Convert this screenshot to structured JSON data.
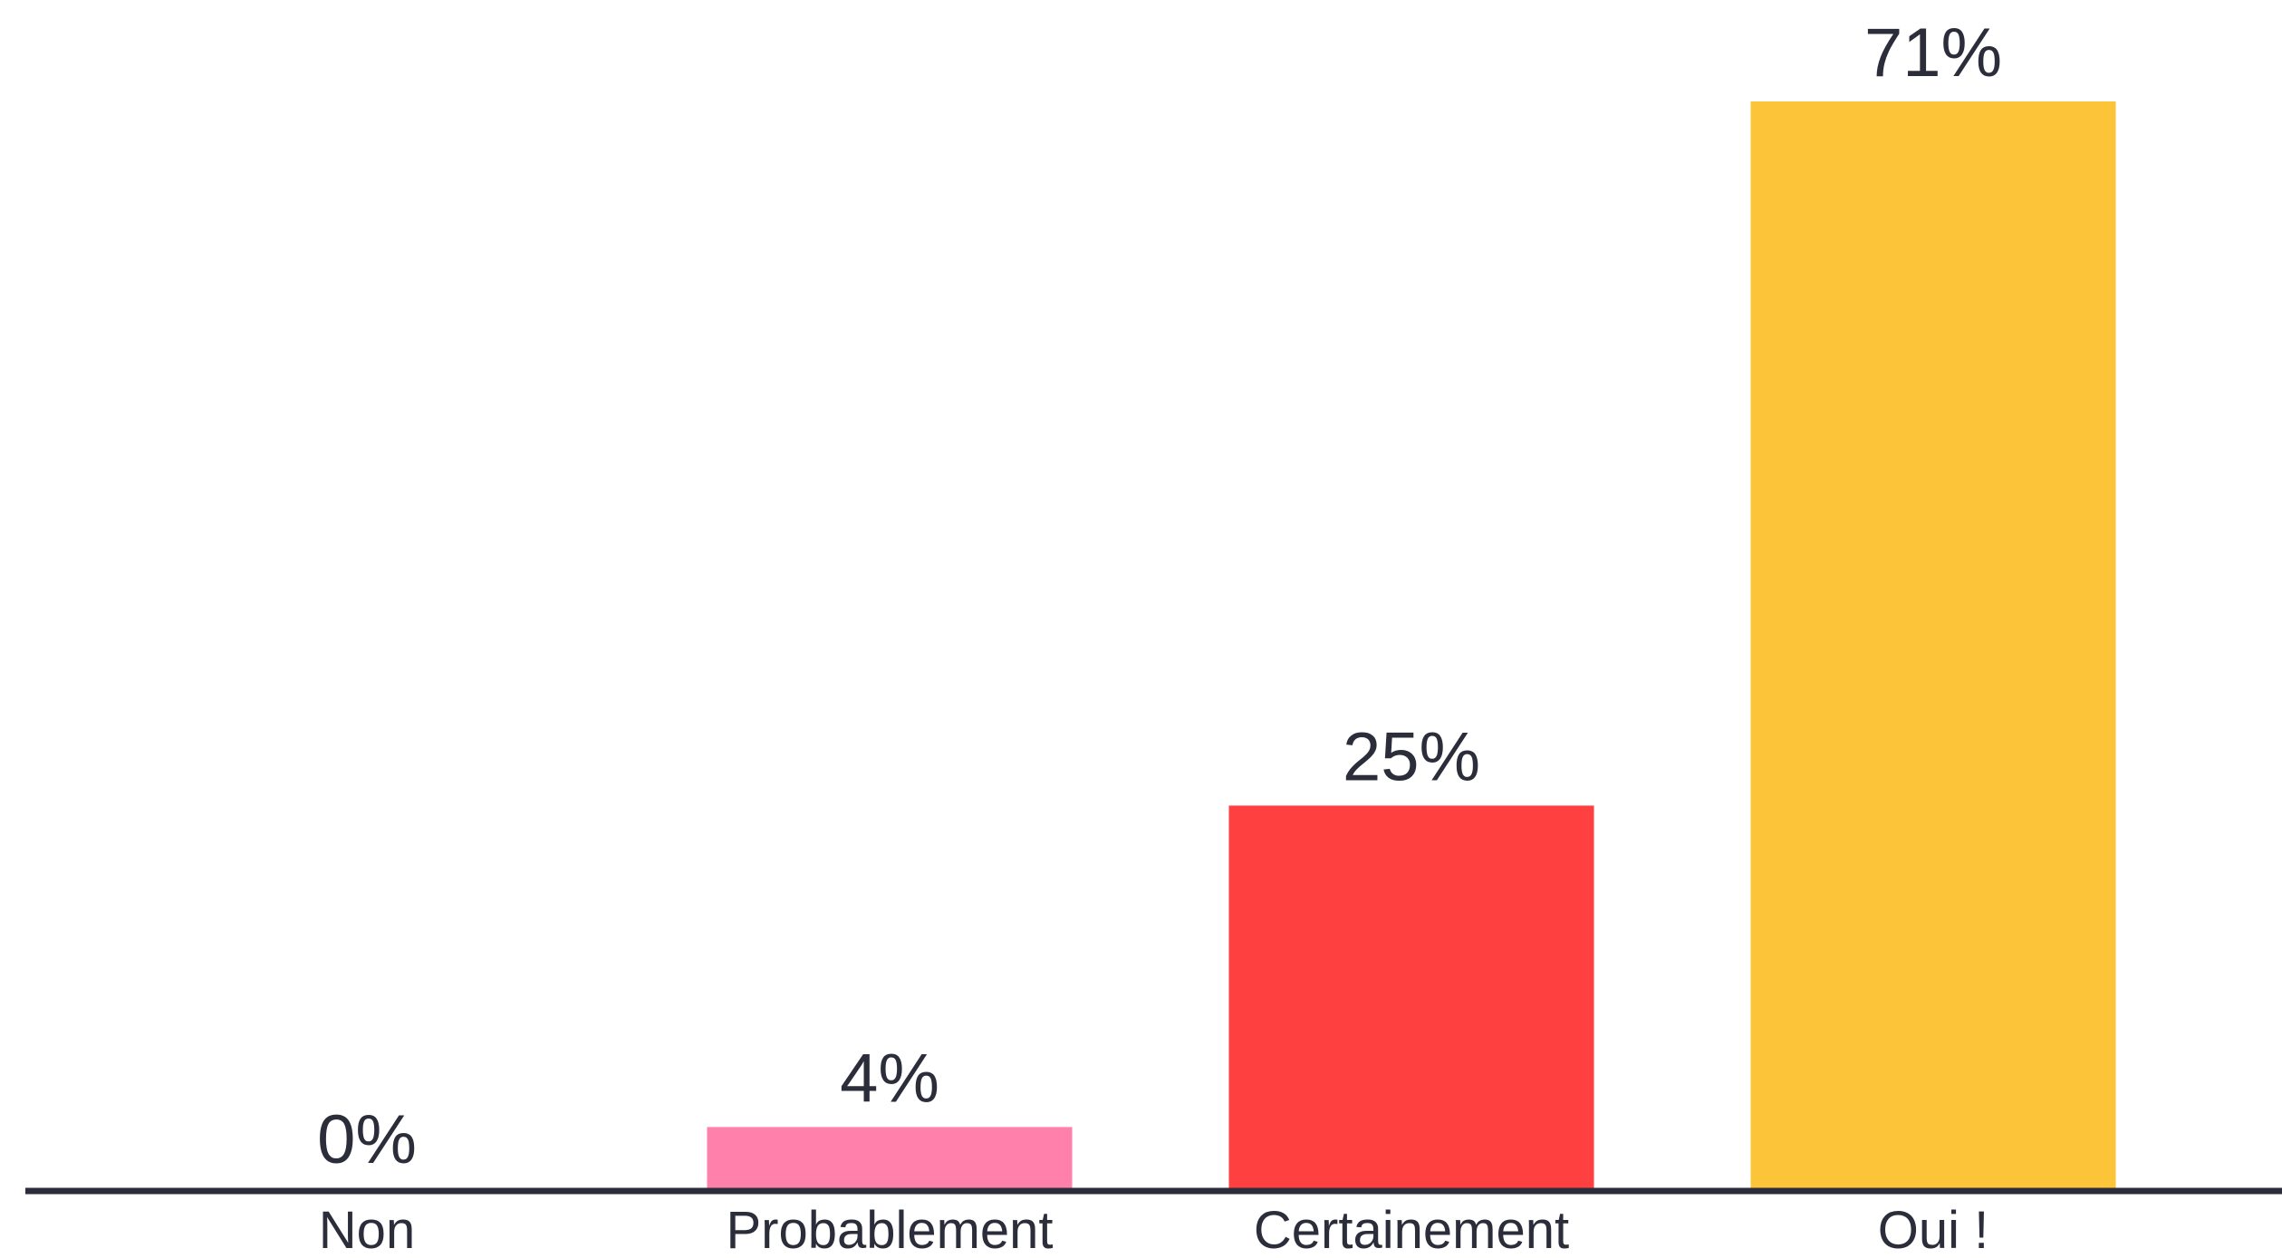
{
  "chart_data": {
    "type": "bar",
    "categories": [
      "Non",
      "Probablement",
      "Certainement",
      "Oui !"
    ],
    "values": [
      0,
      4,
      25,
      71
    ],
    "value_labels": [
      "0%",
      "4%",
      "25%",
      "71%"
    ],
    "colors": [
      "#ff80aa",
      "#ff80aa",
      "#ff4040",
      "#fcc438"
    ],
    "ylim": [
      0,
      71
    ],
    "grid": false,
    "axis_color": "#2b2e3a",
    "text_color": "#2b2e3a"
  }
}
